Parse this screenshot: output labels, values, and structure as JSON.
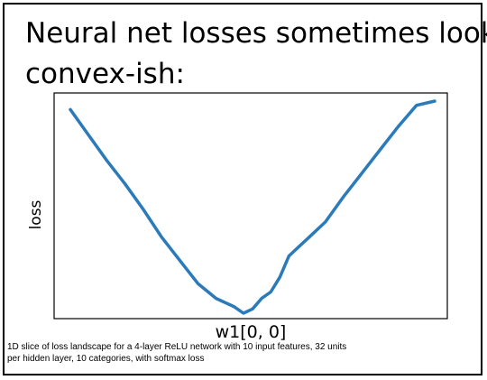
{
  "slide": {
    "title_line1": "Neural net losses sometimes look",
    "title_line2": "convex-ish:",
    "caption_line1": "1D slice of loss landscape for a 4-layer ReLU network with 10 input features, 32 units",
    "caption_line2": "per hidden layer, 10 categories, with softmax loss"
  },
  "colors": {
    "line": "#2b7bba",
    "axes": "#000000",
    "background": "#ffffff"
  },
  "chart_data": {
    "type": "line",
    "title": "",
    "xlabel": "w1[0, 0]",
    "ylabel": "loss",
    "x_ticks": [],
    "y_ticks": [],
    "grid": false,
    "legend": "none",
    "xlim": [
      0,
      1
    ],
    "ylim": [
      0,
      1
    ],
    "series": [
      {
        "x": [
          0.0,
          0.05,
          0.1,
          0.15,
          0.2,
          0.25,
          0.3,
          0.35,
          0.4,
          0.45,
          0.475,
          0.5,
          0.525,
          0.55,
          0.575,
          0.6,
          0.625,
          0.65,
          0.7,
          0.75,
          0.8,
          0.85,
          0.9,
          0.95,
          1.0
        ],
        "y": [
          0.96,
          0.84,
          0.72,
          0.61,
          0.49,
          0.36,
          0.25,
          0.14,
          0.07,
          0.03,
          0.0,
          0.02,
          0.07,
          0.1,
          0.17,
          0.27,
          0.31,
          0.35,
          0.43,
          0.55,
          0.66,
          0.77,
          0.88,
          0.98,
          1.0
        ]
      }
    ]
  }
}
